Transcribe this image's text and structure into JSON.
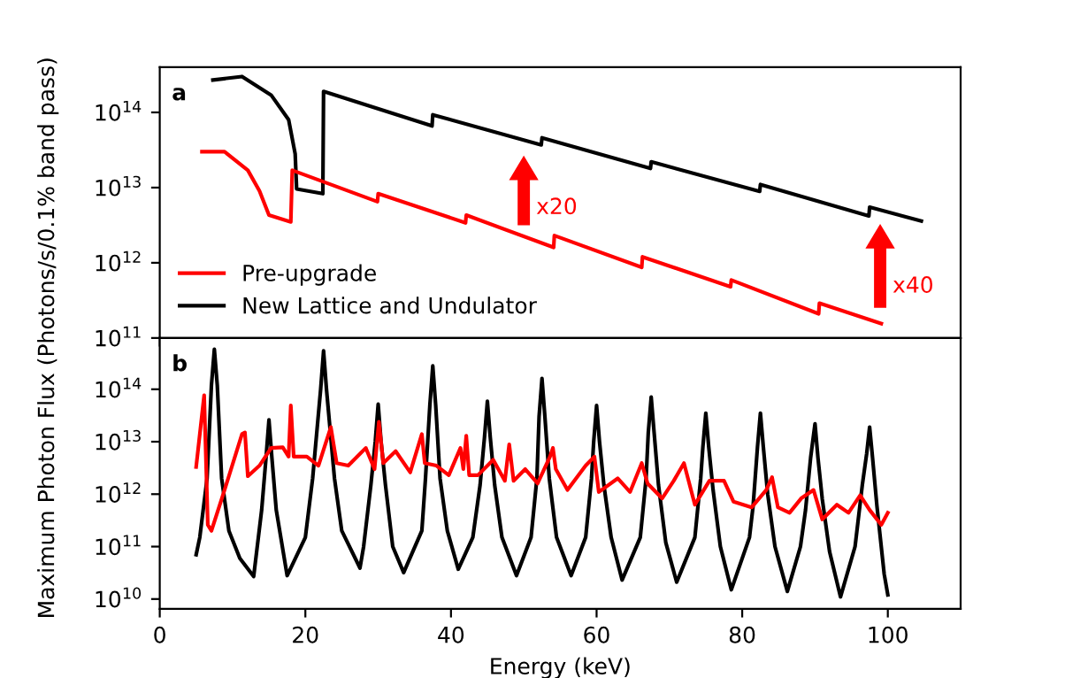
{
  "chart_data": [
    {
      "type": "line",
      "ylabel": "Maximum Photon Flux (Photons/s/0.1% band pass)",
      "log": "y",
      "xlim": [
        0,
        110
      ],
      "xticks": [
        0,
        20,
        40,
        60,
        80,
        100
      ],
      "ylim": [
        100000000000.0,
        400000000000000.0
      ],
      "yticks": [
        {
          "value": 100000000000.0,
          "label": "10$^{11}$"
        },
        {
          "value": 1000000000000.0,
          "label": "10$^{12}$"
        },
        {
          "value": 10000000000000.0,
          "label": "10$^{13}$"
        },
        {
          "value": 100000000000000.0,
          "label": "10$^{14}$"
        }
      ],
      "tick_labels": "y",
      "legend": "bottom left",
      "grid": false,
      "annotations": [
        "a",
        "x20",
        "x40"
      ],
      "series": [
        {
          "name": "Pre-upgrade",
          "color": "#ff0000",
          "x": [
            5.8,
            8.9,
            12.1,
            13.7,
            15.0,
            18.0,
            18.2,
            29.9,
            30.0,
            42.0,
            42.1,
            54.1,
            54.2,
            66.2,
            66.3,
            78.4,
            78.5,
            90.5,
            90.6,
            99.1
          ],
          "values": [
            30000000000000.0,
            30000000000000.0,
            17000000000000.0,
            9000000000000.0,
            4300000000000.0,
            3500000000000.0,
            17000000000000.0,
            6500000000000.0,
            8300000000000.0,
            3400000000000.0,
            4300000000000.0,
            1600000000000.0,
            2300000000000.0,
            870000000000.0,
            1200000000000.0,
            480000000000.0,
            590000000000.0,
            210000000000.0,
            290000000000.0,
            155000000000.0
          ]
        },
        {
          "name": "New Lattice and Undulator",
          "color": "#000000",
          "x": [
            7.3,
            11.3,
            15.3,
            17.7,
            18.6,
            18.8,
            22.4,
            22.5,
            37.4,
            37.5,
            52.4,
            52.5,
            67.4,
            67.5,
            82.4,
            82.5,
            97.4,
            97.5,
            104.6
          ],
          "values": [
            270000000000000.0,
            300000000000000.0,
            170000000000000.0,
            80000000000000.0,
            28000000000000.0,
            9600000000000.0,
            8300000000000.0,
            190000000000000.0,
            66000000000000.0,
            93000000000000.0,
            37000000000000.0,
            46000000000000.0,
            18000000000000.0,
            22000000000000.0,
            8900000000000.0,
            11000000000000.0,
            4200000000000.0,
            5500000000000.0,
            3600000000000.0
          ]
        }
      ]
    },
    {
      "type": "line",
      "xlabel": "Energy (keV)",
      "log": "y",
      "xlim": [
        0,
        110
      ],
      "xticks": [
        0,
        20,
        40,
        60,
        80,
        100
      ],
      "ylim": [
        6500000000.0,
        950000000000000.0
      ],
      "yticks": [
        {
          "value": 10000000000.0,
          "label": "10$^{10}$"
        },
        {
          "value": 100000000000.0,
          "label": "10$^{11}$"
        },
        {
          "value": 1000000000000.0,
          "label": "10$^{12}$"
        },
        {
          "value": 10000000000000.0,
          "label": "10$^{13}$"
        },
        {
          "value": 100000000000000.0,
          "label": "10$^{14}$"
        }
      ],
      "grid": false,
      "legend": false,
      "annotations": [
        "b"
      ],
      "series": [
        {
          "color": "#ff0000",
          "x": [
            5,
            6.1,
            6.6,
            7.1,
            8.9,
            11.3,
            11.7,
            12.1,
            13.7,
            15.3,
            16.9,
            17.7,
            18.0,
            18.4,
            20.2,
            21.8,
            23.5,
            24.3,
            25.9,
            28.3,
            29.5,
            30.1,
            30.7,
            32.4,
            34.4,
            36.0,
            36.4,
            38.0,
            39.7,
            41.3,
            41.7,
            42.1,
            42.5,
            43.7,
            45.8,
            47.4,
            48.0,
            48.6,
            50.2,
            51.9,
            53.6,
            54.0,
            54.4,
            56.0,
            58.5,
            59.7,
            60.3,
            62.9,
            64.6,
            66.2,
            67.0,
            69.0,
            70.6,
            72.0,
            73.5,
            75.5,
            77.5,
            78.8,
            81.3,
            83.3,
            84.1,
            84.9,
            86.5,
            88.1,
            89.8,
            91.0,
            93.0,
            94.6,
            96.2,
            97.5,
            99.1,
            100
          ],
          "values": [
            3300000000000.0,
            77000000000000.0,
            260000000000.0,
            200000000000.0,
            1200000000000.0,
            14000000000000.0,
            15000000000000.0,
            2200000000000.0,
            3500000000000.0,
            7600000000000.0,
            7800000000000.0,
            5200000000000.0,
            49000000000000.0,
            5200000000000.0,
            5200000000000.0,
            3500000000000.0,
            19000000000000.0,
            3900000000000.0,
            3500000000000.0,
            7600000000000.0,
            3000000000000.0,
            24000000000000.0,
            3900000000000.0,
            6600000000000.0,
            2600000000000.0,
            14000000000000.0,
            3900000000000.0,
            3500000000000.0,
            2300000000000.0,
            7600000000000.0,
            3000000000000.0,
            13000000000000.0,
            2300000000000.0,
            2300000000000.0,
            4500000000000.0,
            1800000000000.0,
            8900000000000.0,
            1800000000000.0,
            3000000000000.0,
            1600000000000.0,
            5200000000000.0,
            7600000000000.0,
            3000000000000.0,
            1200000000000.0,
            3500000000000.0,
            5200000000000.0,
            1100000000000.0,
            2000000000000.0,
            1100000000000.0,
            3900000000000.0,
            1600000000000.0,
            830000000000.0,
            1800000000000.0,
            3900000000000.0,
            630000000000.0,
            1800000000000.0,
            1800000000000.0,
            720000000000.0,
            560000000000.0,
            1200000000000.0,
            2100000000000.0,
            560000000000.0,
            440000000000.0,
            830000000000.0,
            1200000000000.0,
            330000000000.0,
            630000000000.0,
            440000000000.0,
            950000000000.0,
            500000000000.0,
            260000000000.0,
            440000000000.0
          ]
        },
        {
          "color": "#000000",
          "x": [
            5,
            5.5,
            6.5,
            7.1,
            7.5,
            7.9,
            8.5,
            9.5,
            11,
            12.9,
            14,
            14.6,
            15,
            15.4,
            16,
            17.5,
            20,
            21,
            22.1,
            22.5,
            22.9,
            24,
            25,
            27.5,
            28,
            29,
            29.6,
            30,
            30.4,
            31,
            32,
            33.5,
            36,
            36.5,
            37.1,
            37.5,
            37.9,
            38.5,
            39.5,
            41,
            43,
            44,
            44.6,
            45,
            45.4,
            46,
            47,
            49,
            51,
            51.8,
            52.1,
            52.5,
            52.9,
            53.5,
            54.5,
            56.5,
            58.5,
            59.3,
            59.6,
            60,
            60.4,
            61,
            62,
            63.5,
            66,
            66.8,
            67.1,
            67.5,
            67.9,
            68.5,
            69.5,
            71,
            73.5,
            74.3,
            74.6,
            75,
            75.4,
            76,
            77,
            78.5,
            81,
            81.5,
            82.1,
            82.5,
            82.9,
            83.5,
            84.5,
            86.2,
            88,
            88.7,
            89.4,
            90,
            90.4,
            91,
            92,
            93.5,
            95.5,
            96.5,
            97.1,
            97.5,
            97.9,
            98.5,
            99.5,
            100
          ],
          "values": [
            70000000000.0,
            150000000000.0,
            2000000000000.0,
            120000000000000.0,
            580000000000000.0,
            120000000000000.0,
            2000000000000.0,
            200000000000.0,
            60000000000.0,
            27000000000.0,
            500000000000.0,
            5000000000000.0,
            26000000000000.0,
            5000000000000.0,
            500000000000.0,
            28000000000.0,
            150000000000.0,
            2000000000000.0,
            100000000000000.0,
            540000000000000.0,
            100000000000000.0,
            2000000000000.0,
            200000000000.0,
            39000000000.0,
            100000000000.0,
            1500000000000.0,
            10000000000000.0,
            52000000000000.0,
            10000000000000.0,
            1500000000000.0,
            100000000000.0,
            32000000000.0,
            200000000000.0,
            2000000000000.0,
            50000000000000.0,
            280000000000000.0,
            50000000000000.0,
            2000000000000.0,
            200000000000.0,
            37000000000.0,
            150000000000.0,
            1500000000000.0,
            12000000000000.0,
            59000000000000.0,
            12000000000000.0,
            1500000000000.0,
            150000000000.0,
            28000000000.0,
            150000000000.0,
            2000000000000.0,
            30000000000000.0,
            160000000000000.0,
            30000000000000.0,
            2000000000000.0,
            150000000000.0,
            28000000000.0,
            150000000000.0,
            2000000000000.0,
            10000000000000.0,
            49000000000000.0,
            10000000000000.0,
            1500000000000.0,
            150000000000.0,
            23000000000.0,
            150000000000.0,
            2000000000000.0,
            15000000000000.0,
            71000000000000.0,
            15000000000000.0,
            1500000000000.0,
            120000000000.0,
            21000000000.0,
            150000000000.0,
            2000000000000.0,
            8000000000000.0,
            35000000000000.0,
            8000000000000.0,
            1200000000000.0,
            100000000000.0,
            15000000000.0,
            150000000000.0,
            600000000000.0,
            8000000000000.0,
            35000000000000.0,
            8000000000000.0,
            1000000000000.0,
            100000000000.0,
            14000000000.0,
            100000000000.0,
            500000000000.0,
            5000000000000.0,
            22000000000000.0,
            5000000000000.0,
            800000000000.0,
            80000000000.0,
            11000000000.0,
            100000000000.0,
            1500000000000.0,
            6000000000000.0,
            19000000000000.0,
            5000000000000.0,
            600000000000.0,
            30000000000.0,
            12000000000.0
          ]
        }
      ]
    }
  ]
}
